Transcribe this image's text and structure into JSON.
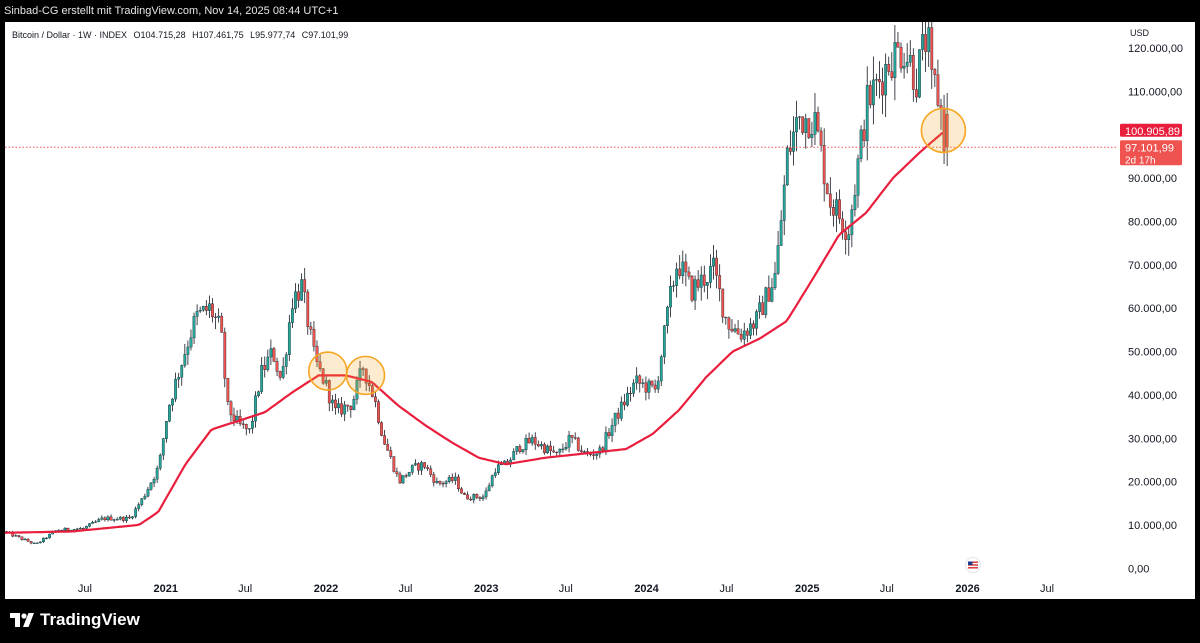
{
  "header": {
    "attribution": "Sinbad-CG erstellt mit TradingView.com, Nov 14, 2025 08:44 UTC+1"
  },
  "legend": {
    "symbol": "Bitcoin / Dollar · 1W · INDEX",
    "open": "O104.715,28",
    "high": "H107.461,75",
    "low": "L95.977,74",
    "close": "C97.101,99"
  },
  "price_axis": {
    "currency": "USD",
    "ma_label": "100.905,89",
    "price_label": "97.101,99",
    "countdown": "2d 17h"
  },
  "footer": {
    "brand": "TradingView"
  },
  "colors": {
    "up": "#26a69a",
    "down": "#ef5350",
    "ma": "#e91e3c",
    "highlight": "#f5a623"
  },
  "chart_data": {
    "type": "candlestick",
    "series": [
      {
        "name": "",
        "kind": "candles",
        "interval": "weekly"
      },
      {
        "name": "",
        "kind": "line"
      }
    ],
    "y_ticks": [
      0,
      10000,
      20000,
      30000,
      40000,
      50000,
      60000,
      70000,
      80000,
      90000,
      100000,
      110000,
      120000
    ],
    "y_tick_labels": [
      "0,00",
      "10.000,00",
      "20.000,00",
      "30.000,00",
      "40.000,00",
      "50.000,00",
      "60.000,00",
      "70.000,00",
      "80.000,00",
      "90.000,00",
      "",
      "110.000,00",
      "120.000,00"
    ],
    "ylim": [
      -2000,
      126000
    ],
    "x_ticks": [
      {
        "label": "Jul",
        "date": "2020-07-01"
      },
      {
        "label": "2021",
        "date": "2021-01-01"
      },
      {
        "label": "Jul",
        "date": "2021-07-01"
      },
      {
        "label": "2022",
        "date": "2022-01-01"
      },
      {
        "label": "Jul",
        "date": "2022-07-01"
      },
      {
        "label": "2023",
        "date": "2023-01-01"
      },
      {
        "label": "Jul",
        "date": "2023-07-01"
      },
      {
        "label": "2024",
        "date": "2024-01-01"
      },
      {
        "label": "Jul",
        "date": "2024-07-01"
      },
      {
        "label": "2025",
        "date": "2025-01-01"
      },
      {
        "label": "Jul",
        "date": "2025-07-01"
      },
      {
        "label": "2026",
        "date": "2026-01-01"
      },
      {
        "label": "Jul",
        "date": "2026-07-01"
      }
    ],
    "xlim": [
      "2020-01-01",
      "2026-11-10"
    ],
    "price_path": [
      [
        "2020-01-01",
        8500
      ],
      [
        "2020-03-15",
        5500
      ],
      [
        "2020-05-01",
        8800
      ],
      [
        "2020-07-01",
        9200
      ],
      [
        "2020-08-15",
        11500
      ],
      [
        "2020-10-15",
        11500
      ],
      [
        "2020-11-15",
        16500
      ],
      [
        "2020-12-20",
        23500
      ],
      [
        "2021-01-10",
        37000
      ],
      [
        "2021-02-20",
        51000
      ],
      [
        "2021-03-15",
        58000
      ],
      [
        "2021-04-15",
        60000
      ],
      [
        "2021-05-10",
        55000
      ],
      [
        "2021-05-25",
        37000
      ],
      [
        "2021-06-20",
        33000
      ],
      [
        "2021-07-15",
        31500
      ],
      [
        "2021-08-10",
        45000
      ],
      [
        "2021-09-05",
        50000
      ],
      [
        "2021-09-25",
        43000
      ],
      [
        "2021-10-20",
        62000
      ],
      [
        "2021-11-10",
        65000
      ],
      [
        "2021-12-10",
        48000
      ],
      [
        "2022-01-05",
        42000
      ],
      [
        "2022-01-25",
        36000
      ],
      [
        "2022-03-05",
        38000
      ],
      [
        "2022-03-30",
        46500
      ],
      [
        "2022-04-25",
        39000
      ],
      [
        "2022-05-15",
        30000
      ],
      [
        "2022-06-20",
        20000
      ],
      [
        "2022-07-20",
        23000
      ],
      [
        "2022-08-15",
        24000
      ],
      [
        "2022-09-15",
        19500
      ],
      [
        "2022-10-25",
        20500
      ],
      [
        "2022-11-15",
        16500
      ],
      [
        "2022-12-31",
        16500
      ],
      [
        "2023-01-25",
        23000
      ],
      [
        "2023-02-20",
        24000
      ],
      [
        "2023-03-20",
        28000
      ],
      [
        "2023-04-20",
        29500
      ],
      [
        "2023-06-15",
        26000
      ],
      [
        "2023-07-15",
        30000
      ],
      [
        "2023-08-20",
        26000
      ],
      [
        "2023-09-20",
        27000
      ],
      [
        "2023-10-25",
        34500
      ],
      [
        "2023-12-10",
        43000
      ],
      [
        "2024-01-25",
        41000
      ],
      [
        "2024-02-25",
        61000
      ],
      [
        "2024-03-15",
        71000
      ],
      [
        "2024-04-15",
        64000
      ],
      [
        "2024-06-05",
        69000
      ],
      [
        "2024-07-05",
        57000
      ],
      [
        "2024-08-05",
        54000
      ],
      [
        "2024-09-10",
        57000
      ],
      [
        "2024-10-25",
        68000
      ],
      [
        "2024-11-20",
        95000
      ],
      [
        "2024-12-15",
        104000
      ],
      [
        "2025-01-20",
        104000
      ],
      [
        "2025-02-25",
        85000
      ],
      [
        "2025-04-08",
        78000
      ],
      [
        "2025-05-20",
        107000
      ],
      [
        "2025-07-15",
        118000
      ],
      [
        "2025-08-14",
        120000
      ],
      [
        "2025-09-10",
        113000
      ],
      [
        "2025-10-06",
        124000
      ],
      [
        "2025-10-12",
        111000
      ],
      [
        "2025-10-25",
        111000
      ],
      [
        "2025-11-08",
        104000
      ],
      [
        "2025-11-14",
        97100
      ]
    ],
    "ma_path": [
      [
        "2020-01-01",
        8200
      ],
      [
        "2020-06-01",
        8500
      ],
      [
        "2020-11-01",
        10000
      ],
      [
        "2020-12-15",
        13000
      ],
      [
        "2021-02-15",
        24000
      ],
      [
        "2021-04-15",
        32000
      ],
      [
        "2021-06-15",
        34000
      ],
      [
        "2021-08-15",
        36000
      ],
      [
        "2021-10-15",
        40500
      ],
      [
        "2021-12-15",
        44500
      ],
      [
        "2022-02-15",
        44500
      ],
      [
        "2022-04-15",
        43000
      ],
      [
        "2022-06-15",
        37500
      ],
      [
        "2022-08-15",
        33000
      ],
      [
        "2022-10-15",
        29000
      ],
      [
        "2022-12-15",
        25500
      ],
      [
        "2023-02-15",
        24000
      ],
      [
        "2023-05-15",
        25500
      ],
      [
        "2023-08-15",
        26500
      ],
      [
        "2023-11-15",
        27500
      ],
      [
        "2024-01-15",
        31000
      ],
      [
        "2024-03-15",
        36500
      ],
      [
        "2024-05-15",
        44000
      ],
      [
        "2024-07-15",
        50000
      ],
      [
        "2024-09-15",
        53000
      ],
      [
        "2024-11-15",
        57000
      ],
      [
        "2025-01-15",
        67000
      ],
      [
        "2025-03-15",
        77000
      ],
      [
        "2025-05-15",
        82000
      ],
      [
        "2025-07-15",
        90000
      ],
      [
        "2025-09-15",
        96000
      ],
      [
        "2025-11-10",
        100905.89
      ]
    ],
    "last_close": 97101.99,
    "ma_last": 100905.89,
    "highlight_circles": [
      {
        "date": "2022-01-05",
        "value": 45500
      },
      {
        "date": "2022-04-01",
        "value": 44500
      },
      {
        "date": "2025-11-07",
        "value": 101000
      }
    ]
  }
}
